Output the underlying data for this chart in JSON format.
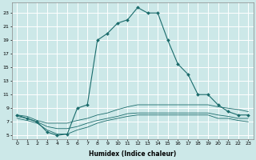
{
  "xlabel": "Humidex (Indice chaleur)",
  "background_color": "#cce8e8",
  "grid_color": "#ffffff",
  "line_color": "#1a6b6b",
  "xlim": [
    -0.5,
    23.5
  ],
  "ylim": [
    4.5,
    24.5
  ],
  "xticks": [
    0,
    1,
    2,
    3,
    4,
    5,
    6,
    7,
    8,
    9,
    10,
    11,
    12,
    13,
    14,
    15,
    16,
    17,
    18,
    19,
    20,
    21,
    22,
    23
  ],
  "yticks": [
    5,
    7,
    9,
    11,
    13,
    15,
    17,
    19,
    21,
    23
  ],
  "curve1_x": [
    0,
    1,
    2,
    3,
    4,
    5,
    6,
    7,
    8,
    9,
    10,
    11,
    12,
    13,
    14,
    15,
    16,
    17,
    18,
    19,
    20,
    21,
    22,
    23
  ],
  "curve1_y": [
    8.0,
    7.5,
    7.0,
    5.5,
    5.0,
    5.2,
    9.0,
    9.5,
    19.0,
    20.0,
    21.5,
    22.0,
    23.8,
    23.0,
    23.0,
    19.0,
    15.5,
    14.0,
    11.0,
    11.0,
    9.5,
    8.5,
    8.0,
    8.0
  ],
  "curve2_x": [
    0,
    1,
    2,
    3,
    4,
    5,
    6,
    7,
    8,
    9,
    10,
    11,
    12,
    13,
    14,
    15,
    16,
    17,
    18,
    19,
    20,
    21,
    22,
    23
  ],
  "curve2_y": [
    8.0,
    7.8,
    7.2,
    6.8,
    6.8,
    6.8,
    7.2,
    7.5,
    8.0,
    8.3,
    8.8,
    9.2,
    9.5,
    9.5,
    9.5,
    9.5,
    9.5,
    9.5,
    9.5,
    9.5,
    9.2,
    9.0,
    8.8,
    8.5
  ],
  "curve3_x": [
    0,
    1,
    2,
    3,
    4,
    5,
    6,
    7,
    8,
    9,
    10,
    11,
    12,
    13,
    14,
    15,
    16,
    17,
    18,
    19,
    20,
    21,
    22,
    23
  ],
  "curve3_y": [
    7.8,
    7.5,
    7.0,
    6.3,
    6.0,
    6.0,
    6.3,
    6.8,
    7.2,
    7.5,
    7.8,
    8.2,
    8.3,
    8.3,
    8.3,
    8.3,
    8.3,
    8.3,
    8.3,
    8.3,
    8.0,
    7.8,
    7.5,
    7.5
  ],
  "curve4_x": [
    0,
    1,
    2,
    3,
    4,
    5,
    6,
    7,
    8,
    9,
    10,
    11,
    12,
    13,
    14,
    15,
    16,
    17,
    18,
    19,
    20,
    21,
    22,
    23
  ],
  "curve4_y": [
    7.5,
    7.2,
    6.8,
    5.8,
    5.2,
    5.2,
    5.8,
    6.2,
    6.8,
    7.2,
    7.5,
    7.8,
    8.0,
    8.0,
    8.0,
    8.0,
    8.0,
    8.0,
    8.0,
    8.0,
    7.5,
    7.5,
    7.2,
    7.0
  ]
}
